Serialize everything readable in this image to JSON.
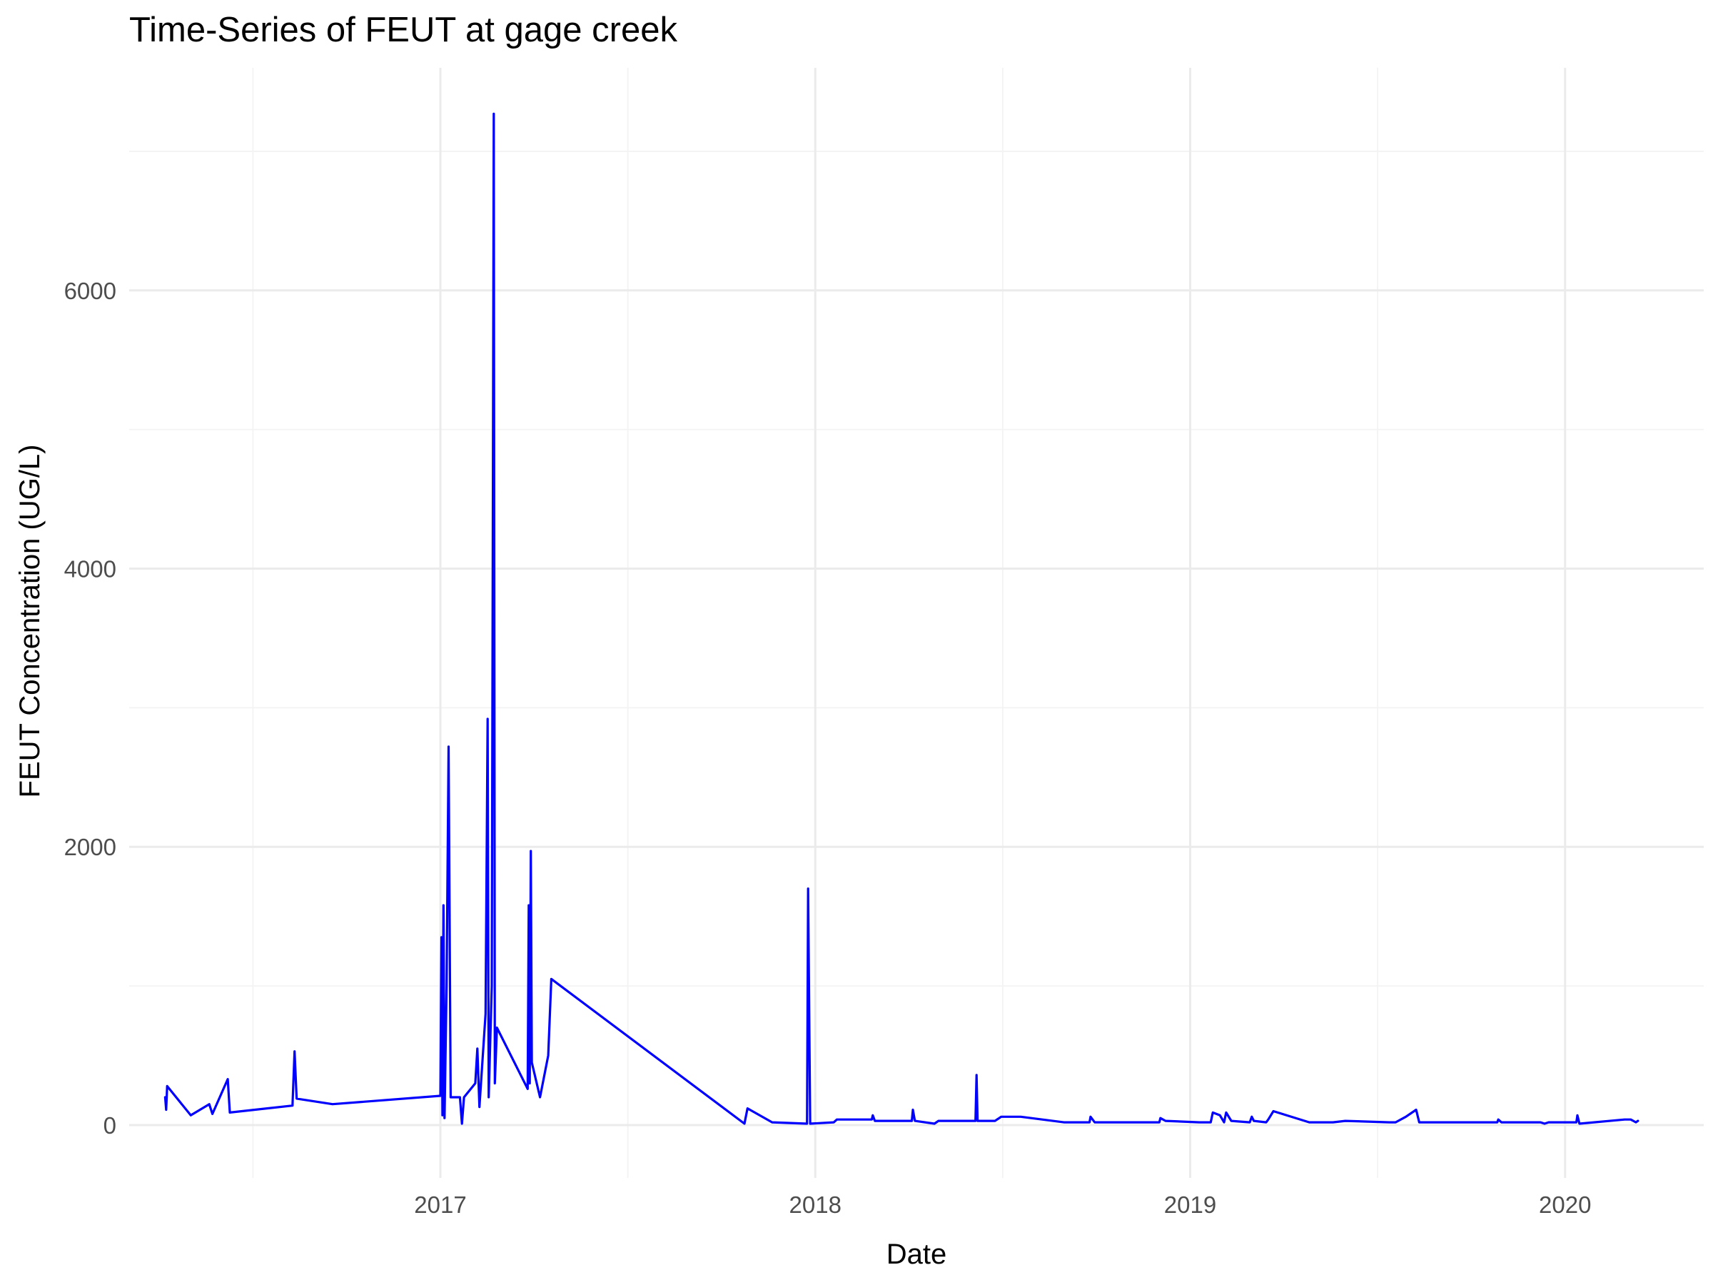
{
  "chart_data": {
    "type": "line",
    "title": "Time-Series of FEUT at gage creek",
    "xlabel": "Date",
    "ylabel": "FEUT Concentration (UG/L)",
    "xlim": [
      "2016-03-04",
      "2020-05-15"
    ],
    "ylim": [
      -380,
      7600
    ],
    "x_ticks": [
      "2017-01-01",
      "2018-01-01",
      "2019-01-01",
      "2020-01-01"
    ],
    "x_tick_labels": [
      "2017",
      "2018",
      "2019",
      "2020"
    ],
    "y_ticks": [
      0,
      2000,
      4000,
      6000
    ],
    "y_tick_labels": [
      "0",
      "2000",
      "4000",
      "6000"
    ],
    "grid": true,
    "legend": "none",
    "series": [
      {
        "color": "#0000FF",
        "points": [
          [
            "2016-04-08",
            200
          ],
          [
            "2016-04-09",
            110
          ],
          [
            "2016-04-10",
            280
          ],
          [
            "2016-05-03",
            70
          ],
          [
            "2016-05-21",
            150
          ],
          [
            "2016-05-24",
            80
          ],
          [
            "2016-06-08",
            330
          ],
          [
            "2016-06-10",
            90
          ],
          [
            "2016-08-10",
            140
          ],
          [
            "2016-08-12",
            530
          ],
          [
            "2016-08-14",
            190
          ],
          [
            "2016-09-18",
            150
          ],
          [
            "2017-01-01",
            210
          ],
          [
            "2017-01-02",
            1350
          ],
          [
            "2017-01-03",
            70
          ],
          [
            "2017-01-04",
            1580
          ],
          [
            "2017-01-05",
            50
          ],
          [
            "2017-01-07",
            1000
          ],
          [
            "2017-01-09",
            2720
          ],
          [
            "2017-01-11",
            200
          ],
          [
            "2017-01-20",
            200
          ],
          [
            "2017-01-22",
            10
          ],
          [
            "2017-01-24",
            200
          ],
          [
            "2017-02-04",
            300
          ],
          [
            "2017-02-06",
            550
          ],
          [
            "2017-02-08",
            130
          ],
          [
            "2017-02-14",
            800
          ],
          [
            "2017-02-16",
            2920
          ],
          [
            "2017-02-17",
            200
          ],
          [
            "2017-02-20",
            1000
          ],
          [
            "2017-02-22",
            7270
          ],
          [
            "2017-02-23",
            300
          ],
          [
            "2017-02-25",
            700
          ],
          [
            "2017-03-27",
            260
          ],
          [
            "2017-03-28",
            1580
          ],
          [
            "2017-03-29",
            300
          ],
          [
            "2017-03-30",
            1970
          ],
          [
            "2017-03-31",
            450
          ],
          [
            "2017-04-08",
            200
          ],
          [
            "2017-04-16",
            500
          ],
          [
            "2017-04-19",
            1050
          ],
          [
            "2017-10-24",
            10
          ],
          [
            "2017-10-27",
            120
          ],
          [
            "2017-11-20",
            20
          ],
          [
            "2017-12-24",
            10
          ],
          [
            "2017-12-25",
            1700
          ],
          [
            "2017-12-27",
            10
          ],
          [
            "2018-01-19",
            20
          ],
          [
            "2018-01-22",
            40
          ],
          [
            "2018-02-25",
            40
          ],
          [
            "2018-02-26",
            70
          ],
          [
            "2018-02-28",
            30
          ],
          [
            "2018-04-05",
            30
          ],
          [
            "2018-04-06",
            110
          ],
          [
            "2018-04-08",
            30
          ],
          [
            "2018-04-27",
            10
          ],
          [
            "2018-05-01",
            30
          ],
          [
            "2018-06-06",
            30
          ],
          [
            "2018-06-07",
            360
          ],
          [
            "2018-06-08",
            30
          ],
          [
            "2018-06-25",
            30
          ],
          [
            "2018-07-01",
            60
          ],
          [
            "2018-07-20",
            60
          ],
          [
            "2018-08-31",
            20
          ],
          [
            "2018-09-10",
            20
          ],
          [
            "2018-09-25",
            20
          ],
          [
            "2018-09-26",
            60
          ],
          [
            "2018-09-30",
            20
          ],
          [
            "2018-12-02",
            20
          ],
          [
            "2018-12-03",
            50
          ],
          [
            "2018-12-08",
            30
          ],
          [
            "2019-01-10",
            20
          ],
          [
            "2019-01-21",
            20
          ],
          [
            "2019-01-23",
            90
          ],
          [
            "2019-01-30",
            70
          ],
          [
            "2019-02-03",
            20
          ],
          [
            "2019-02-05",
            90
          ],
          [
            "2019-02-10",
            30
          ],
          [
            "2019-02-28",
            20
          ],
          [
            "2019-03-02",
            60
          ],
          [
            "2019-03-04",
            30
          ],
          [
            "2019-03-16",
            20
          ],
          [
            "2019-03-18",
            40
          ],
          [
            "2019-03-23",
            100
          ],
          [
            "2019-04-27",
            20
          ],
          [
            "2019-05-20",
            20
          ],
          [
            "2019-06-01",
            30
          ],
          [
            "2019-07-14",
            20
          ],
          [
            "2019-07-20",
            20
          ],
          [
            "2019-07-30",
            60
          ],
          [
            "2019-08-09",
            110
          ],
          [
            "2019-08-12",
            20
          ],
          [
            "2019-09-10",
            20
          ],
          [
            "2019-10-27",
            20
          ],
          [
            "2019-10-28",
            40
          ],
          [
            "2019-10-31",
            20
          ],
          [
            "2019-12-08",
            20
          ],
          [
            "2019-12-12",
            10
          ],
          [
            "2019-12-16",
            20
          ],
          [
            "2020-01-12",
            20
          ],
          [
            "2020-01-13",
            70
          ],
          [
            "2020-01-15",
            10
          ],
          [
            "2020-02-28",
            40
          ],
          [
            "2020-03-05",
            40
          ],
          [
            "2020-03-10",
            20
          ],
          [
            "2020-03-12",
            30
          ]
        ]
      }
    ]
  }
}
